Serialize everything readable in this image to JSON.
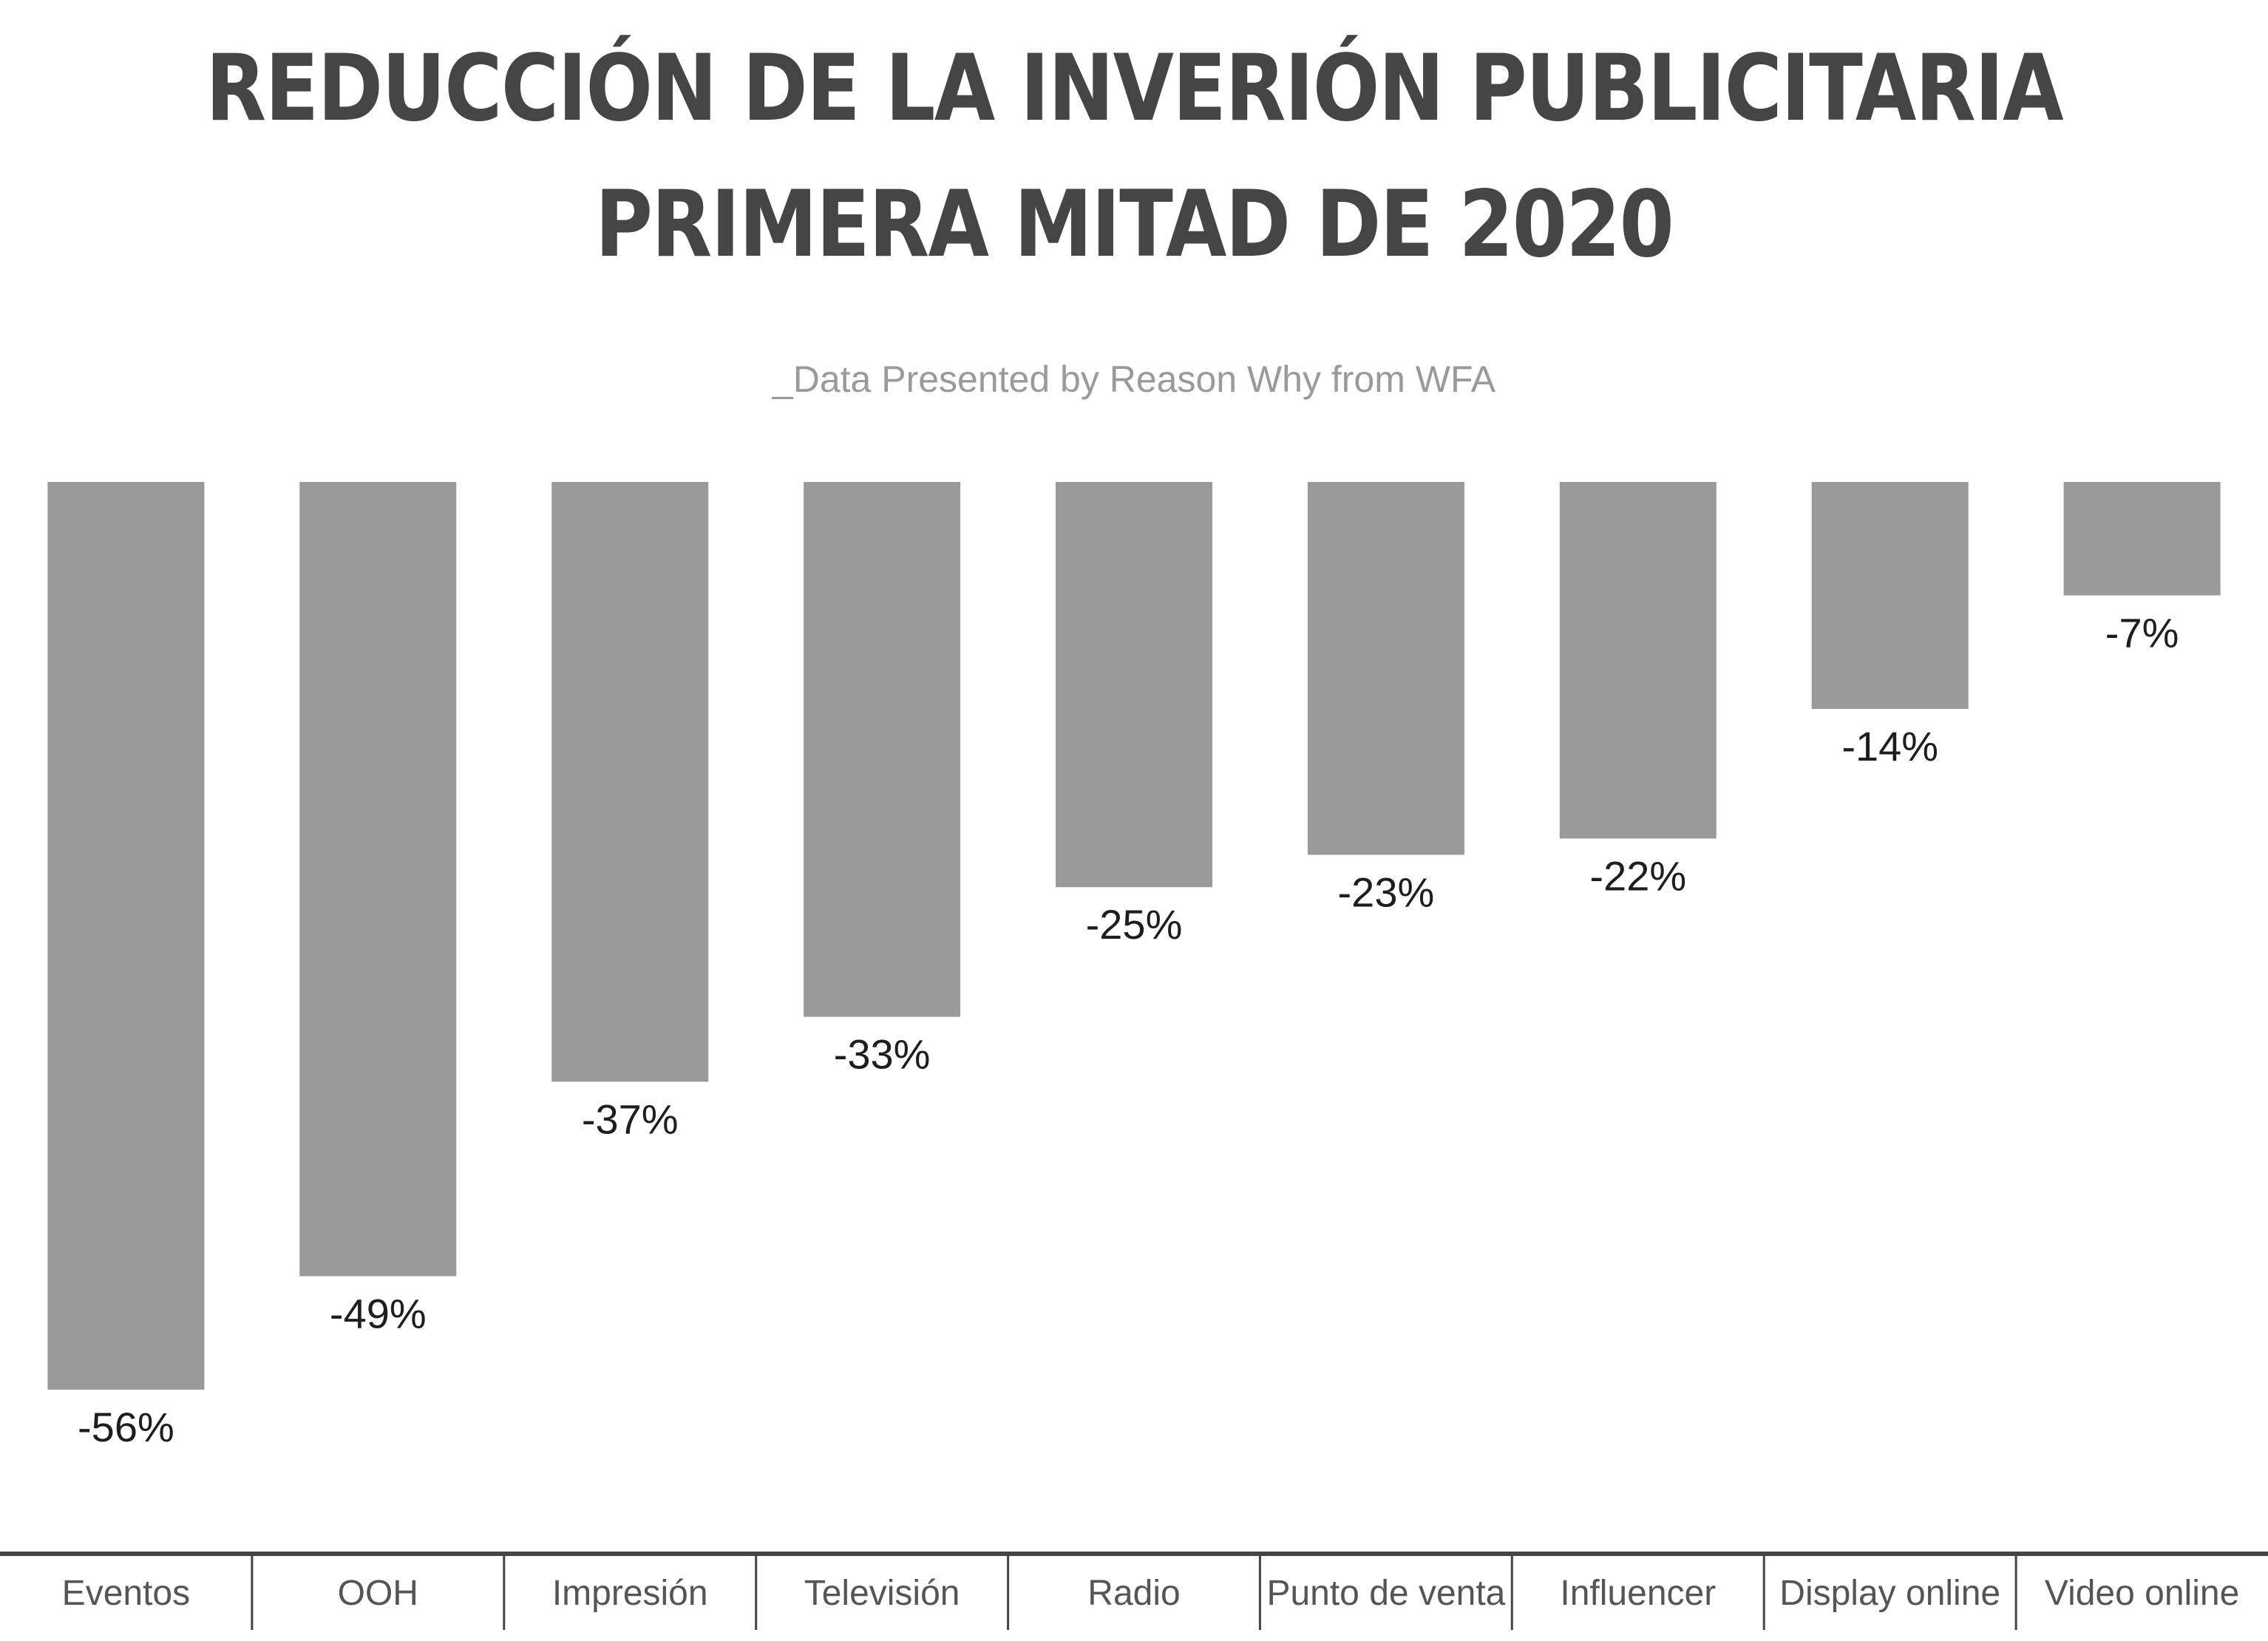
{
  "title_lines": [
    "REDUCCIÓN DE LA INVERIÓN PUBLICITARIA",
    "PRIMERA MITAD DE 2020"
  ],
  "subtitle": "_Data Presented by Reason Why from WFA",
  "colors": {
    "bar": "#9a9a9a",
    "axis": "#444444",
    "title": "#454545"
  },
  "chart_data": {
    "type": "bar",
    "title": "REDUCCIÓN DE LA INVERIÓN PUBLICITARIA PRIMERA MITAD DE 2020",
    "subtitle": "_Data Presented by Reason Why from WFA",
    "categories": [
      "Eventos",
      "OOH",
      "Impresión",
      "Televisión",
      "Radio",
      "Punto de venta",
      "Influencer",
      "Display online",
      "Video online"
    ],
    "values": [
      -56,
      -49,
      -37,
      -33,
      -25,
      -23,
      -22,
      -14,
      -7
    ],
    "data_labels": [
      "-56%",
      "-49%",
      "-37%",
      "-33%",
      "-25%",
      "-23%",
      "-22%",
      "-14%",
      "-7%"
    ],
    "ylim": [
      -56,
      0
    ],
    "xlabel": "",
    "ylabel": "",
    "grid": false,
    "legend": "none",
    "category_axis_position": "bottom"
  }
}
